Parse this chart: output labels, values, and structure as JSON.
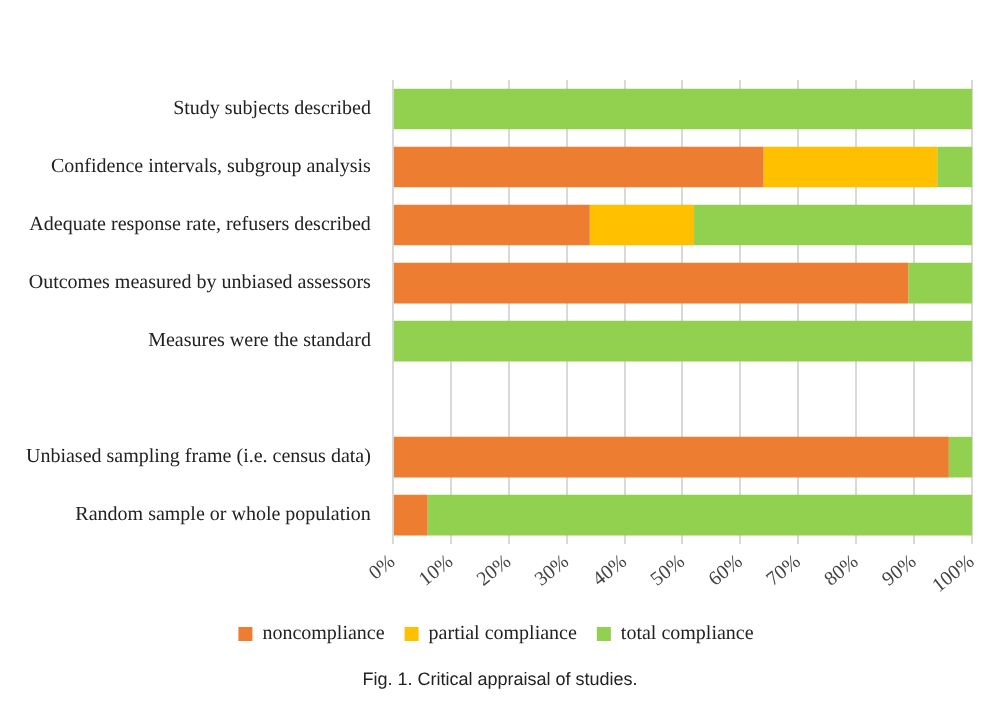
{
  "chart_data": {
    "type": "bar",
    "orientation": "horizontal",
    "stacked": true,
    "categories": [
      "Study subjects described",
      "Confidence intervals, subgroup analysis",
      "Adequate response rate, refusers described",
      "Outcomes measured by unbiased assessors",
      "Measures were the standard",
      null,
      "Unbiased sampling frame (i.e. census data)",
      "Random sample or whole population"
    ],
    "series": [
      {
        "name": "noncompliance",
        "color": "#ed7d31",
        "values": [
          0,
          64,
          34,
          89,
          0,
          null,
          96,
          6
        ]
      },
      {
        "name": "partial compliance",
        "color": "#ffc000",
        "values": [
          0,
          30,
          18,
          0,
          0,
          null,
          0,
          0
        ]
      },
      {
        "name": "total compliance",
        "color": "#92d050",
        "values": [
          100,
          6,
          48,
          11,
          100,
          null,
          4,
          94
        ]
      }
    ],
    "xlim": [
      0,
      100
    ],
    "xticks": [
      {
        "value": 0,
        "label": "0%"
      },
      {
        "value": 10,
        "label": "10%"
      },
      {
        "value": 20,
        "label": "20%"
      },
      {
        "value": 30,
        "label": "30%"
      },
      {
        "value": 40,
        "label": "40%"
      },
      {
        "value": 50,
        "label": "50%"
      },
      {
        "value": 60,
        "label": "60%"
      },
      {
        "value": 70,
        "label": "70%"
      },
      {
        "value": 80,
        "label": "80%"
      },
      {
        "value": 90,
        "label": "90%"
      },
      {
        "value": 100,
        "label": "100%"
      }
    ],
    "grid": "x",
    "legend": "bottom",
    "annotations": [
      "Fig. 1. Critical appraisal of studies."
    ]
  }
}
